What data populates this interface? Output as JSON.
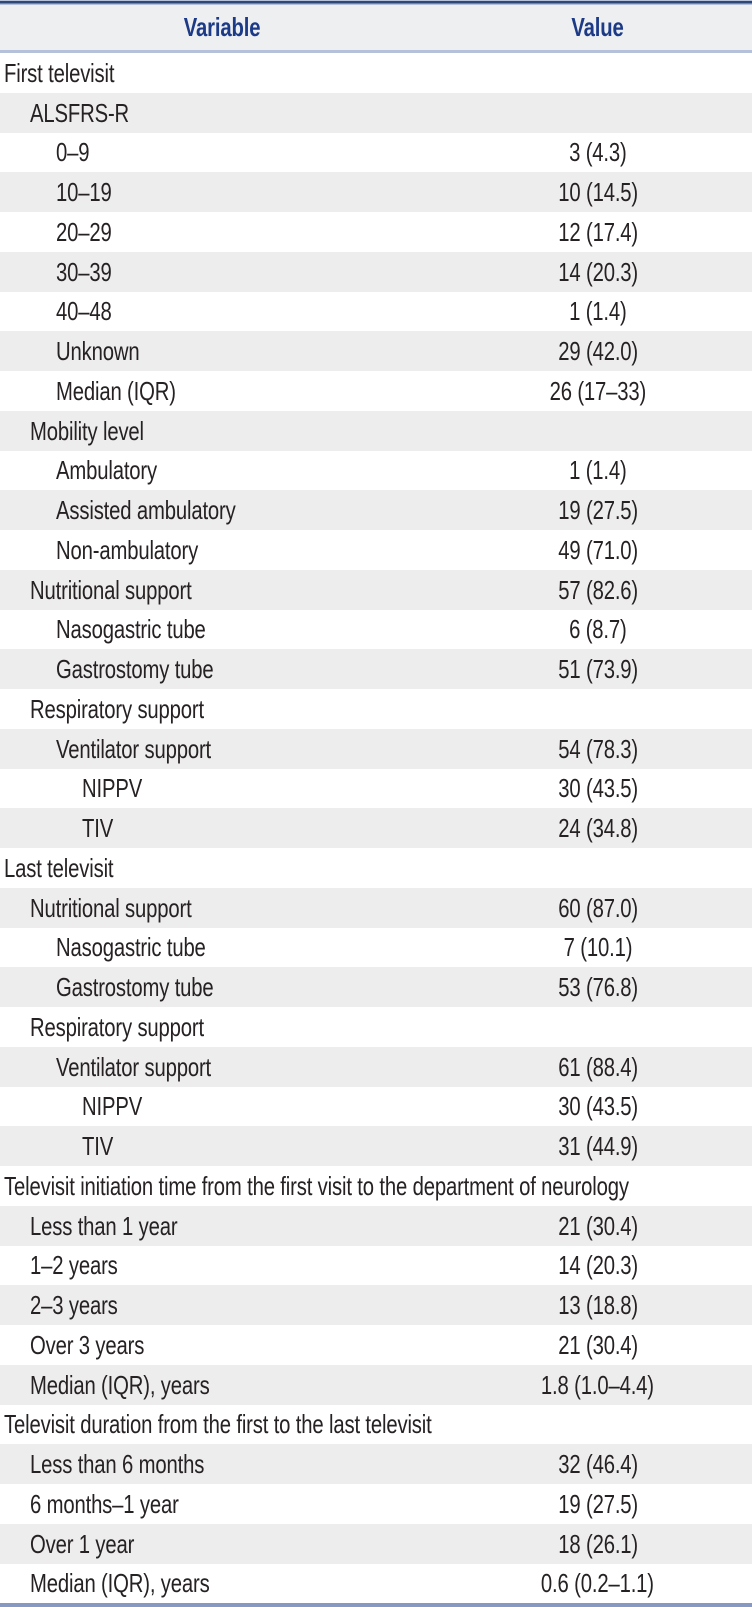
{
  "table": {
    "header": {
      "variable": "Variable",
      "value": "Value"
    },
    "rows": [
      {
        "label": "First televisit",
        "value": "",
        "indent": 0
      },
      {
        "label": "ALSFRS-R",
        "value": "",
        "indent": 1
      },
      {
        "label": "0–9",
        "value": "3 (4.3)",
        "indent": 2
      },
      {
        "label": "10–19",
        "value": "10 (14.5)",
        "indent": 2
      },
      {
        "label": "20–29",
        "value": "12 (17.4)",
        "indent": 2
      },
      {
        "label": "30–39",
        "value": "14 (20.3)",
        "indent": 2
      },
      {
        "label": "40–48",
        "value": "1 (1.4)",
        "indent": 2
      },
      {
        "label": "Unknown",
        "value": "29 (42.0)",
        "indent": 2
      },
      {
        "label": "Median (IQR)",
        "value": "26 (17–33)",
        "indent": 2
      },
      {
        "label": "Mobility level",
        "value": "",
        "indent": 1
      },
      {
        "label": "Ambulatory",
        "value": "1 (1.4)",
        "indent": 2
      },
      {
        "label": "Assisted ambulatory",
        "value": "19 (27.5)",
        "indent": 2
      },
      {
        "label": "Non-ambulatory",
        "value": "49 (71.0)",
        "indent": 2
      },
      {
        "label": "Nutritional support",
        "value": "57 (82.6)",
        "indent": 1
      },
      {
        "label": "Nasogastric tube",
        "value": "6 (8.7)",
        "indent": 2
      },
      {
        "label": "Gastrostomy tube",
        "value": "51 (73.9)",
        "indent": 2
      },
      {
        "label": "Respiratory support",
        "value": "",
        "indent": 1
      },
      {
        "label": "Ventilator support",
        "value": "54 (78.3)",
        "indent": 2
      },
      {
        "label": "NIPPV",
        "value": "30 (43.5)",
        "indent": 3
      },
      {
        "label": "TIV",
        "value": "24 (34.8)",
        "indent": 3
      },
      {
        "label": "Last televisit",
        "value": "",
        "indent": 0
      },
      {
        "label": "Nutritional support",
        "value": "60 (87.0)",
        "indent": 1
      },
      {
        "label": "Nasogastric tube",
        "value": "7 (10.1)",
        "indent": 2
      },
      {
        "label": "Gastrostomy tube",
        "value": "53 (76.8)",
        "indent": 2
      },
      {
        "label": "Respiratory support",
        "value": "",
        "indent": 1
      },
      {
        "label": "Ventilator support",
        "value": "61 (88.4)",
        "indent": 2
      },
      {
        "label": "NIPPV",
        "value": "30 (43.5)",
        "indent": 3
      },
      {
        "label": "TIV",
        "value": "31 (44.9)",
        "indent": 3
      },
      {
        "label": "Televisit initiation time from the first visit to the department of neurology",
        "value": "",
        "indent": 0
      },
      {
        "label": "Less than 1 year",
        "value": "21 (30.4)",
        "indent": 1
      },
      {
        "label": "1–2 years",
        "value": "14 (20.3)",
        "indent": 1
      },
      {
        "label": "2–3 years",
        "value": "13 (18.8)",
        "indent": 1
      },
      {
        "label": "Over 3 years",
        "value": "21 (30.4)",
        "indent": 1
      },
      {
        "label": "Median (IQR), years",
        "value": "1.8 (1.0–4.4)",
        "indent": 1
      },
      {
        "label": "Televisit duration from the first to the last televisit",
        "value": "",
        "indent": 0
      },
      {
        "label": "Less than 6 months",
        "value": "32 (46.4)",
        "indent": 1
      },
      {
        "label": "6 months–1 year",
        "value": "19 (27.5)",
        "indent": 1
      },
      {
        "label": "Over 1 year",
        "value": "18 (26.1)",
        "indent": 1
      },
      {
        "label": "Median (IQR), years",
        "value": "0.6 (0.2–1.1)",
        "indent": 1
      }
    ]
  },
  "colors": {
    "header_text": "#1c3a86",
    "body_text": "#262122",
    "stripe": "#ededed",
    "header_bg": "#edeff0",
    "rule_dark": "#2c4878",
    "rule_light": "#b5c1d8",
    "bottom_rule": "#8799c0"
  }
}
